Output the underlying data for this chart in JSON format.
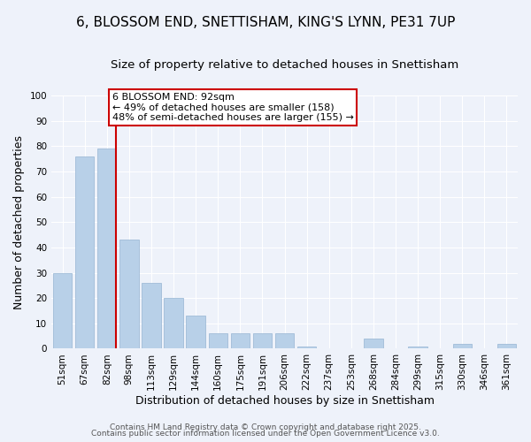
{
  "title": "6, BLOSSOM END, SNETTISHAM, KING'S LYNN, PE31 7UP",
  "subtitle": "Size of property relative to detached houses in Snettisham",
  "xlabel": "Distribution of detached houses by size in Snettisham",
  "ylabel": "Number of detached properties",
  "categories": [
    "51sqm",
    "67sqm",
    "82sqm",
    "98sqm",
    "113sqm",
    "129sqm",
    "144sqm",
    "160sqm",
    "175sqm",
    "191sqm",
    "206sqm",
    "222sqm",
    "237sqm",
    "253sqm",
    "268sqm",
    "284sqm",
    "299sqm",
    "315sqm",
    "330sqm",
    "346sqm",
    "361sqm"
  ],
  "values": [
    30,
    76,
    79,
    43,
    26,
    20,
    13,
    6,
    6,
    6,
    6,
    1,
    0,
    0,
    4,
    0,
    1,
    0,
    2,
    0,
    2
  ],
  "bar_color": "#b8d0e8",
  "bar_edge_color": "#a0bcd8",
  "vline_color": "#cc0000",
  "vline_x_idx": 2,
  "ylim": [
    0,
    100
  ],
  "annotation_title": "6 BLOSSOM END: 92sqm",
  "annotation_line1": "← 49% of detached houses are smaller (158)",
  "annotation_line2": "48% of semi-detached houses are larger (155) →",
  "annotation_box_color": "#ffffff",
  "annotation_box_edge": "#cc0000",
  "footer1": "Contains HM Land Registry data © Crown copyright and database right 2025.",
  "footer2": "Contains public sector information licensed under the Open Government Licence v3.0.",
  "background_color": "#eef2fa",
  "grid_color": "#ffffff",
  "title_fontsize": 11,
  "subtitle_fontsize": 9.5,
  "axis_label_fontsize": 9,
  "tick_fontsize": 7.5,
  "annotation_fontsize": 8,
  "footer_fontsize": 6.5
}
